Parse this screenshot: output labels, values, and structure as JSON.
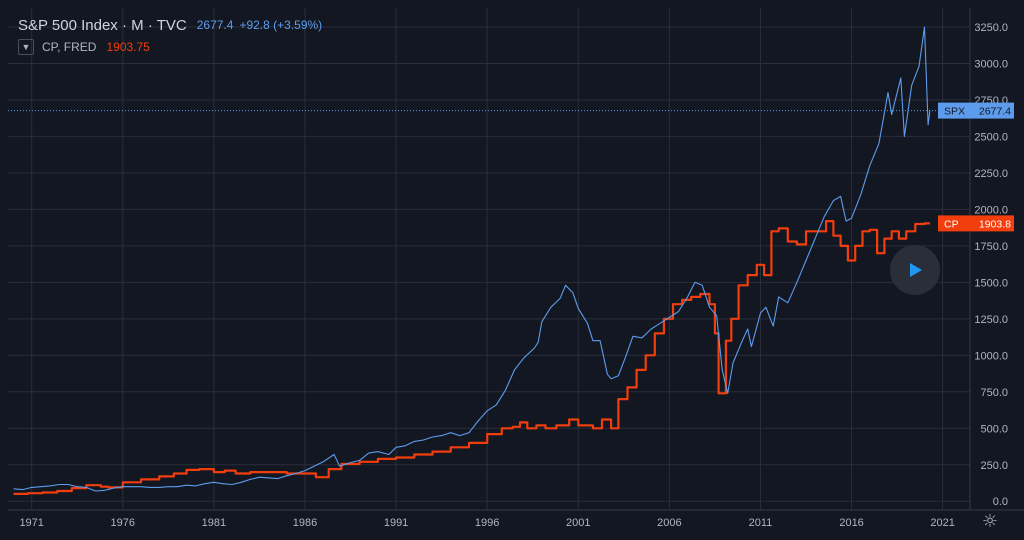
{
  "legend": {
    "main": {
      "symbol": "S&P 500 Index",
      "interval": "M",
      "exchange": "TVC",
      "value": "2677.4",
      "change": "+92.8 (+3.59%)",
      "color": "#5d9cec"
    },
    "secondary": {
      "symbol": "CP, FRED",
      "value": "1903.75",
      "color": "#f23d0c"
    }
  },
  "price_labels": [
    {
      "name": "SPX",
      "value": "2677.4",
      "bg": "#5d9cec"
    },
    {
      "name": "CP",
      "value": "1903.8",
      "bg": "#f23d0c"
    }
  ],
  "icons": {
    "play": "play-icon",
    "settings": "gear-icon",
    "collapse": "chevron-down-icon"
  },
  "chart_data": {
    "type": "line",
    "y_ticks": [
      "3250.0",
      "3000.0",
      "2750.0",
      "2500.0",
      "2250.0",
      "2000.0",
      "1750.0",
      "1500.0",
      "1250.0",
      "1000.0",
      "750.0",
      "500.0",
      "250.0",
      "0.0"
    ],
    "x_ticks": [
      "1971",
      "1976",
      "1981",
      "1986",
      "1991",
      "1996",
      "2001",
      "2006",
      "2011",
      "2016",
      "2021"
    ],
    "ylim": [
      -60,
      3380
    ],
    "xlim": [
      1969.7,
      2022.5
    ],
    "grid": true,
    "series": [
      {
        "name": "SPX",
        "color": "#5d9cec",
        "x": [
          1970.0,
          1970.5,
          1971.0,
          1971.5,
          1972.0,
          1972.5,
          1973.0,
          1973.5,
          1974.0,
          1974.5,
          1975.0,
          1975.5,
          1976.0,
          1976.5,
          1977.0,
          1977.5,
          1978.0,
          1978.5,
          1979.0,
          1979.5,
          1980.0,
          1980.5,
          1981.0,
          1981.5,
          1982.0,
          1982.5,
          1983.0,
          1983.5,
          1984.0,
          1984.5,
          1985.0,
          1985.5,
          1986.0,
          1986.5,
          1987.0,
          1987.6,
          1987.9,
          1988.5,
          1989.0,
          1989.5,
          1990.0,
          1990.6,
          1991.0,
          1991.5,
          1992.0,
          1992.5,
          1993.0,
          1993.5,
          1994.0,
          1994.5,
          1995.0,
          1995.5,
          1996.0,
          1996.5,
          1997.0,
          1997.5,
          1998.0,
          1998.6,
          1998.8,
          1999.0,
          1999.5,
          2000.0,
          2000.3,
          2000.7,
          2001.0,
          2001.5,
          2001.8,
          2002.2,
          2002.6,
          2002.8,
          2003.2,
          2003.6,
          2004.0,
          2004.5,
          2005.0,
          2005.5,
          2006.0,
          2006.5,
          2007.0,
          2007.4,
          2007.8,
          2008.2,
          2008.6,
          2008.9,
          2009.2,
          2009.5,
          2010.0,
          2010.3,
          2010.5,
          2011.0,
          2011.3,
          2011.7,
          2012.0,
          2012.5,
          2013.0,
          2013.5,
          2014.0,
          2014.5,
          2015.0,
          2015.4,
          2015.7,
          2016.0,
          2016.5,
          2017.0,
          2017.5,
          2018.0,
          2018.2,
          2018.7,
          2018.9,
          2019.3,
          2019.7,
          2020.0,
          2020.2,
          2020.3
        ],
        "values": [
          85,
          80,
          95,
          100,
          105,
          115,
          115,
          100,
          95,
          70,
          75,
          90,
          100,
          100,
          100,
          95,
          95,
          100,
          100,
          110,
          105,
          120,
          130,
          120,
          115,
          130,
          150,
          165,
          160,
          155,
          175,
          190,
          210,
          240,
          270,
          320,
          240,
          265,
          280,
          330,
          340,
          320,
          370,
          380,
          410,
          420,
          440,
          450,
          470,
          450,
          470,
          550,
          620,
          660,
          760,
          900,
          980,
          1050,
          1090,
          1230,
          1330,
          1390,
          1480,
          1430,
          1320,
          1220,
          1100,
          1100,
          870,
          840,
          860,
          990,
          1130,
          1120,
          1180,
          1220,
          1260,
          1300,
          1400,
          1500,
          1480,
          1330,
          1270,
          900,
          740,
          950,
          1100,
          1180,
          1060,
          1290,
          1330,
          1200,
          1400,
          1360,
          1500,
          1650,
          1800,
          1950,
          2060,
          2090,
          1920,
          1940,
          2100,
          2300,
          2450,
          2800,
          2650,
          2900,
          2500,
          2850,
          2980,
          3250,
          2580,
          2677
        ]
      },
      {
        "name": "CP",
        "color": "#f23d0c",
        "x": [
          1970.0,
          1970.8,
          1971.6,
          1972.4,
          1973.2,
          1974.0,
          1974.8,
          1975.2,
          1976.0,
          1977.0,
          1978.0,
          1978.8,
          1979.5,
          1980.2,
          1981.0,
          1981.6,
          1982.2,
          1983.0,
          1984.0,
          1985.0,
          1986.0,
          1986.6,
          1987.3,
          1988.0,
          1989.0,
          1990.0,
          1991.0,
          1992.0,
          1993.0,
          1994.0,
          1995.0,
          1996.0,
          1996.8,
          1997.4,
          1997.8,
          1998.2,
          1998.7,
          1999.2,
          1999.8,
          2000.5,
          2001.0,
          2001.5,
          2001.8,
          2002.3,
          2002.8,
          2003.2,
          2003.7,
          2004.2,
          2004.7,
          2005.2,
          2005.7,
          2006.2,
          2006.7,
          2007.2,
          2007.7,
          2008.2,
          2008.5,
          2008.7,
          2008.9,
          2009.1,
          2009.4,
          2009.8,
          2010.3,
          2010.8,
          2011.2,
          2011.6,
          2012.0,
          2012.5,
          2013.0,
          2013.5,
          2014.0,
          2014.6,
          2015.0,
          2015.4,
          2015.8,
          2016.2,
          2016.6,
          2017.0,
          2017.4,
          2017.8,
          2018.2,
          2018.6,
          2019.0,
          2019.5,
          2020.0,
          2020.3
        ],
        "values": [
          50,
          55,
          60,
          70,
          90,
          110,
          100,
          95,
          130,
          150,
          170,
          190,
          215,
          220,
          200,
          210,
          190,
          200,
          200,
          190,
          190,
          165,
          220,
          255,
          270,
          290,
          300,
          320,
          340,
          370,
          400,
          460,
          500,
          510,
          540,
          500,
          520,
          500,
          520,
          560,
          520,
          520,
          500,
          560,
          500,
          700,
          780,
          900,
          1000,
          1150,
          1250,
          1350,
          1380,
          1400,
          1420,
          1350,
          1150,
          740,
          740,
          1100,
          1250,
          1480,
          1550,
          1620,
          1550,
          1850,
          1870,
          1780,
          1760,
          1850,
          1850,
          1920,
          1820,
          1750,
          1650,
          1750,
          1850,
          1860,
          1700,
          1800,
          1850,
          1800,
          1850,
          1900,
          1904,
          1904
        ]
      }
    ]
  }
}
